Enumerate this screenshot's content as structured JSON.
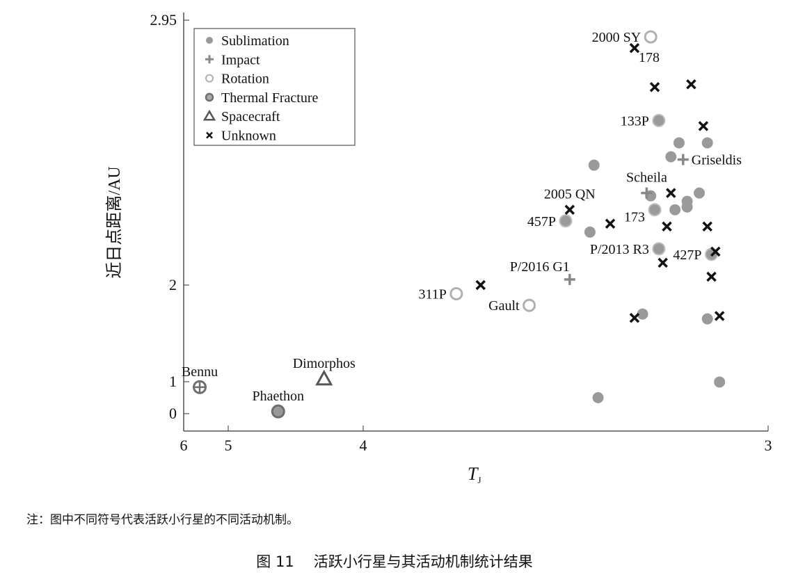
{
  "chart_data": {
    "type": "scatter",
    "title": "",
    "xlabel": "T_J",
    "ylabel": "近日点距离/AU",
    "xlim": [
      6,
      3
    ],
    "ylim": [
      0,
      2.95
    ],
    "x_ticks": [
      "6",
      "5",
      "4",
      "3"
    ],
    "x_tick_values": [
      6,
      5,
      4,
      3
    ],
    "y_ticks": [
      "0",
      "1",
      "2",
      "2.95"
    ],
    "y_tick_values": [
      0,
      1,
      2,
      2.95
    ],
    "x_scale": "nonlinear",
    "y_scale": "nonlinear",
    "grid": false,
    "legend_position": "top-left",
    "legend": [
      "Sublimation",
      "Impact",
      "Rotation",
      "Thermal Fracture",
      "Spacecraft",
      "Unknown"
    ],
    "series": [
      {
        "name": "Sublimation",
        "marker": "filled-circle",
        "points": [
          {
            "x": 3.27,
            "y": 2.59,
            "label": "133P",
            "pos": "left",
            "big": true
          },
          {
            "x": 3.22,
            "y": 2.51
          },
          {
            "x": 3.15,
            "y": 2.51
          },
          {
            "x": 3.24,
            "y": 2.46
          },
          {
            "x": 3.43,
            "y": 2.43
          },
          {
            "x": 3.17,
            "y": 2.33
          },
          {
            "x": 3.2,
            "y": 2.3
          },
          {
            "x": 3.23,
            "y": 2.27
          },
          {
            "x": 3.2,
            "y": 2.28
          },
          {
            "x": 3.29,
            "y": 2.32
          },
          {
            "x": 3.28,
            "y": 2.27,
            "label": "173",
            "pos": "left-below",
            "big": true
          },
          {
            "x": 3.5,
            "y": 2.23,
            "label": "457P",
            "pos": "left",
            "big": true
          },
          {
            "x": 3.44,
            "y": 2.19
          },
          {
            "x": 3.27,
            "y": 2.13,
            "label": "P/2013 R3",
            "pos": "left",
            "big": true
          },
          {
            "x": 3.14,
            "y": 2.11,
            "label": "427P",
            "pos": "left",
            "big": true
          },
          {
            "x": 3.31,
            "y": 1.7
          },
          {
            "x": 3.15,
            "y": 1.65
          },
          {
            "x": 3.12,
            "y": 0.99
          },
          {
            "x": 3.42,
            "y": 0.5
          }
        ]
      },
      {
        "name": "Impact",
        "marker": "plus",
        "points": [
          {
            "x": 3.3,
            "y": 2.33,
            "label": "Scheila",
            "pos": "above"
          },
          {
            "x": 3.21,
            "y": 2.45,
            "label": "Griseldis",
            "pos": "right"
          },
          {
            "x": 3.49,
            "y": 2.02,
            "label": "P/2016 G1",
            "pos": "above-left"
          }
        ]
      },
      {
        "name": "Rotation",
        "marker": "open-circle",
        "points": [
          {
            "x": 3.29,
            "y": 2.89,
            "label": "2000 SY",
            "pos": "left"
          },
          {
            "x": 3.77,
            "y": 1.91,
            "label": "311P",
            "pos": "left"
          },
          {
            "x": 3.59,
            "y": 1.79,
            "label": "Gault",
            "pos": "left"
          }
        ]
      },
      {
        "name": "Thermal Fracture",
        "marker": "ring-circle",
        "points": [
          {
            "x": 4.63,
            "y": 0.07,
            "label": "Phaethon",
            "pos": "above"
          },
          {
            "x": 5.64,
            "y": 0.83,
            "label": "Bennu",
            "pos": "above",
            "cross": true
          }
        ]
      },
      {
        "name": "Spacecraft",
        "marker": "triangle",
        "points": [
          {
            "x": 4.29,
            "y": 1.03,
            "label": "Dimorphos",
            "pos": "above"
          }
        ]
      },
      {
        "name": "Unknown",
        "marker": "x",
        "points": [
          {
            "x": 3.33,
            "y": 2.85,
            "label": "178",
            "pos": "right-below"
          },
          {
            "x": 3.28,
            "y": 2.71
          },
          {
            "x": 3.19,
            "y": 2.72
          },
          {
            "x": 3.16,
            "y": 2.57
          },
          {
            "x": 3.49,
            "y": 2.27,
            "label": "2005 QN",
            "pos": "above"
          },
          {
            "x": 3.24,
            "y": 2.33
          },
          {
            "x": 3.39,
            "y": 2.22
          },
          {
            "x": 3.25,
            "y": 2.21
          },
          {
            "x": 3.15,
            "y": 2.21
          },
          {
            "x": 3.13,
            "y": 2.12
          },
          {
            "x": 3.26,
            "y": 2.08
          },
          {
            "x": 3.14,
            "y": 2.03
          },
          {
            "x": 3.71,
            "y": 2.0
          },
          {
            "x": 3.33,
            "y": 1.66
          },
          {
            "x": 3.12,
            "y": 1.68
          }
        ]
      }
    ]
  },
  "note": "注：图中不同符号代表活跃小行星的不同活动机制。",
  "caption": {
    "number": "图 11",
    "text": "活跃小行星与其活动机制统计结果"
  },
  "colors": {
    "sublimation": "#9a9a9a",
    "impact": "#888888",
    "rotation": "#b0b0b0",
    "thermal": "#6e6e6e",
    "spacecraft": "#555555",
    "unknown": "#111111"
  }
}
